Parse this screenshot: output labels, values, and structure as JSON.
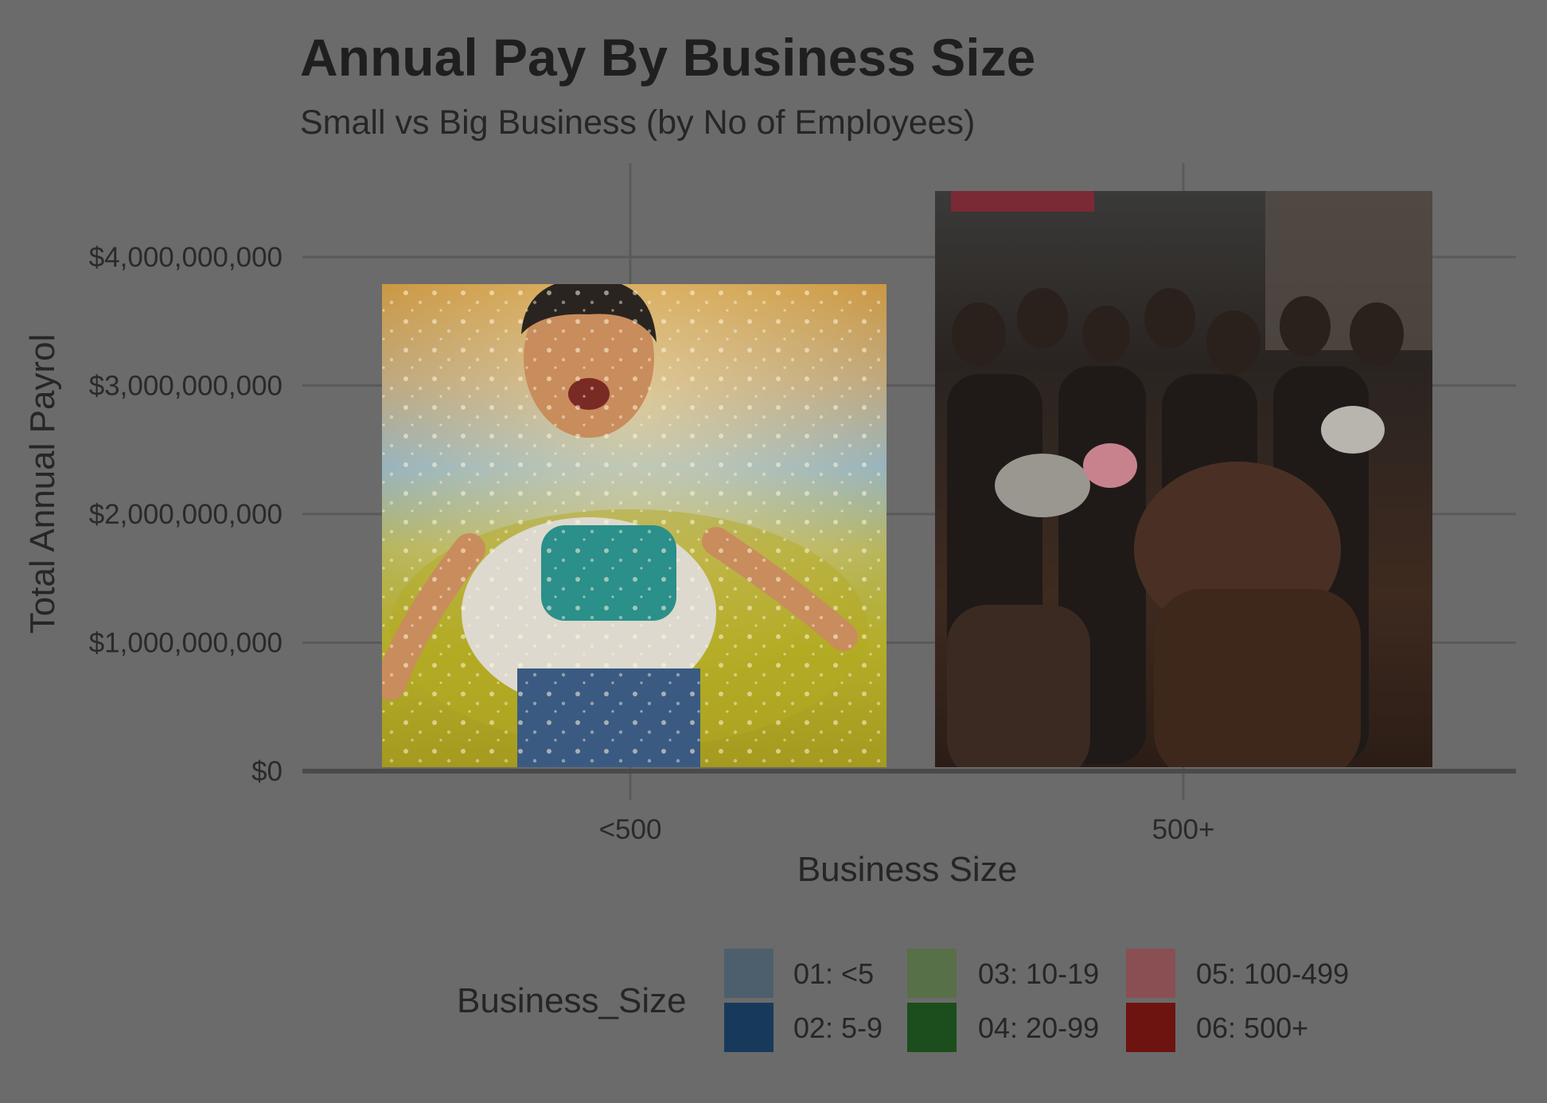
{
  "chart_data": {
    "type": "bar",
    "title": "Annual Pay By Business Size",
    "subtitle": "Small vs Big Business (by No of Employees)",
    "xlabel": "Business Size",
    "ylabel": "Total Annual Payrol",
    "categories": [
      "<500",
      "500+"
    ],
    "values": [
      3750000000,
      4500000000
    ],
    "ylim": [
      0,
      4500000000
    ],
    "yticks": [
      0,
      1000000000,
      2000000000,
      3000000000,
      4000000000
    ],
    "ytick_labels": [
      "$0",
      "$1,000,000,000",
      "$2,000,000,000",
      "$3,000,000,000",
      "$4,000,000,000"
    ],
    "grid": true,
    "bar_fills": [
      "photo-of-laughing-child",
      "photo-of-crowd"
    ],
    "legend": {
      "title": "Business_Size",
      "position": "bottom",
      "entries": [
        {
          "label": "01: <5",
          "color": "#4d5f6c"
        },
        {
          "label": "02: 5-9",
          "color": "#173a5c"
        },
        {
          "label": "03: 10-19",
          "color": "#577048"
        },
        {
          "label": "04: 20-99",
          "color": "#1c4d1c"
        },
        {
          "label": "05: 100-499",
          "color": "#8a4f53"
        },
        {
          "label": "06: 500+",
          "color": "#6e1410"
        }
      ]
    }
  }
}
